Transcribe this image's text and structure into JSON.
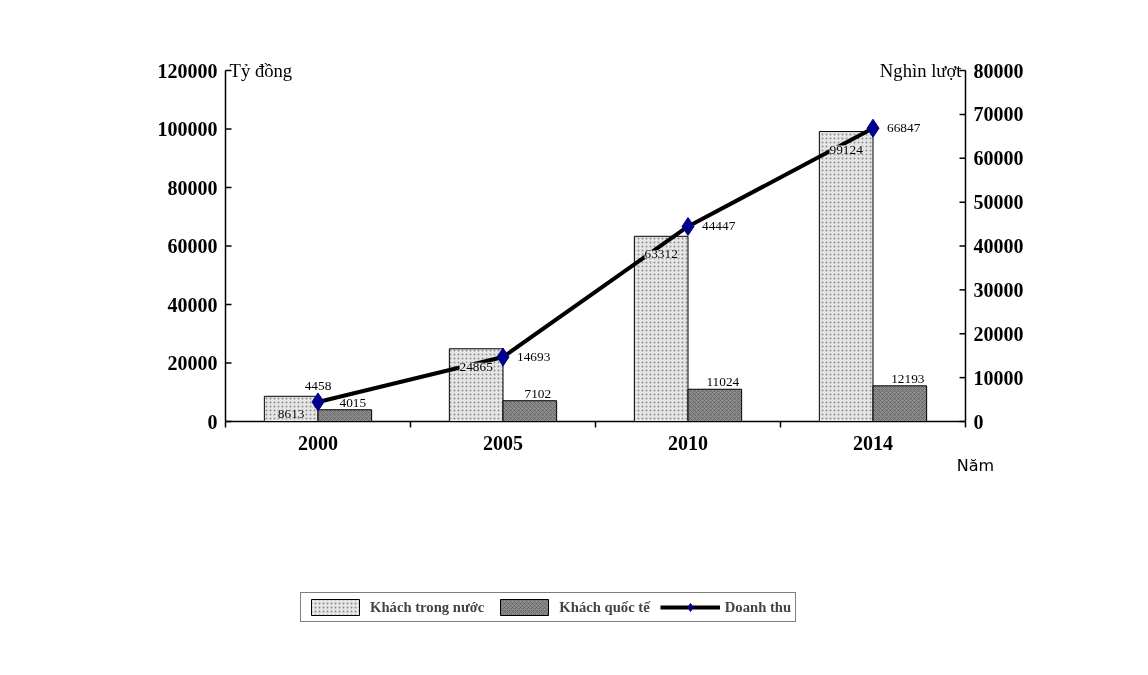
{
  "chart_data": {
    "type": "bar",
    "xlabel": "Năm",
    "ylabel": "Tỷ đồng",
    "y2label": "Nghìn lượt",
    "categories": [
      "2000",
      "2005",
      "2010",
      "2014"
    ],
    "series": [
      {
        "name": "Khách trong nước",
        "color": "#e6e6e6",
        "values": [
          8613,
          24865,
          63312,
          99124
        ]
      },
      {
        "name": "Khách quốc tế",
        "color": "#8c8c8c",
        "values": [
          4015,
          7102,
          11024,
          12193
        ]
      },
      {
        "name": "Doanh thu",
        "type": "line",
        "axis": "y2",
        "color": "#000000",
        "values": [
          4458,
          14693,
          44447,
          66847
        ]
      }
    ],
    "ylim": [
      0,
      120000
    ],
    "yticks": [
      0,
      20000,
      40000,
      60000,
      80000,
      100000,
      120000
    ],
    "y2lim": [
      0,
      80000
    ],
    "y2ticks": [
      0,
      10000,
      20000,
      30000,
      40000,
      50000,
      60000,
      70000,
      80000
    ],
    "marker": "diamond",
    "data_labels": true,
    "legend": "bottom",
    "grid": false
  }
}
